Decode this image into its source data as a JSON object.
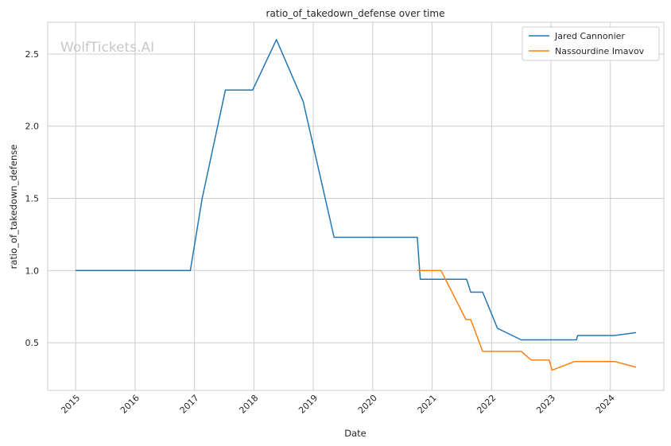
{
  "chart_data": {
    "type": "line",
    "title": "ratio_of_takedown_defense over time",
    "xlabel": "Date",
    "ylabel": "ratio_of_takedown_defense",
    "watermark": "WolfTickets.AI",
    "x_ticks": [
      "2015",
      "2016",
      "2017",
      "2018",
      "2019",
      "2020",
      "2021",
      "2022",
      "2023",
      "2024"
    ],
    "y_ticks": [
      "0.5",
      "1.0",
      "1.5",
      "2.0",
      "2.5"
    ],
    "xlim": [
      2014.53,
      2024.9
    ],
    "ylim": [
      0.17,
      2.72
    ],
    "grid": true,
    "legend_position": "top-right",
    "series": [
      {
        "name": "Jared Cannonier",
        "color": "#1f77b4",
        "x": [
          2015.0,
          2016.93,
          2017.13,
          2017.52,
          2017.98,
          2018.38,
          2018.83,
          2019.35,
          2020.75,
          2020.8,
          2021.58,
          2021.65,
          2021.85,
          2022.1,
          2022.5,
          2023.43,
          2023.45,
          2024.07,
          2024.43
        ],
        "y": [
          1.0,
          1.0,
          1.5,
          2.25,
          2.25,
          2.6,
          2.17,
          1.23,
          1.23,
          0.94,
          0.94,
          0.85,
          0.85,
          0.6,
          0.52,
          0.52,
          0.55,
          0.55,
          0.57
        ]
      },
      {
        "name": "Nassourdine Imavov",
        "color": "#ff7f0e",
        "x": [
          2020.75,
          2021.15,
          2021.57,
          2021.65,
          2021.85,
          2022.5,
          2022.67,
          2022.97,
          2023.02,
          2023.4,
          2024.07,
          2024.43
        ],
        "y": [
          1.0,
          1.0,
          0.66,
          0.66,
          0.44,
          0.44,
          0.38,
          0.38,
          0.31,
          0.37,
          0.37,
          0.33
        ]
      }
    ]
  }
}
